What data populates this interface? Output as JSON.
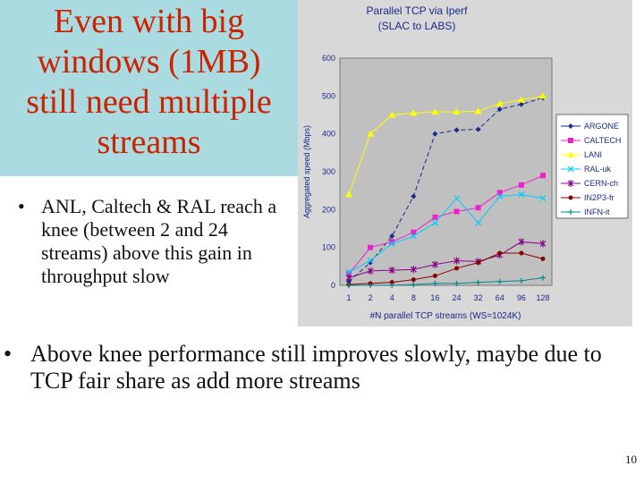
{
  "slide": {
    "title_lines": [
      "Even with big",
      "windows (1MB)",
      "still need multiple",
      "streams"
    ],
    "bullet1": "ANL, Caltech & RAL reach a knee (between 2 and 24 streams) above this gain in throughput slow",
    "bullet2": "Above knee performance still improves slowly, maybe due to TCP fair share as add more streams",
    "bullet_glyph": "•",
    "page_number": "10",
    "colors": {
      "title_bg": "#a9dbe0",
      "title_text": "#cc2200",
      "chart_bg": "#d8d8d8",
      "plot_bg": "#c0c0c0"
    }
  },
  "chart_data": {
    "type": "line",
    "title": "Parallel TCP via Iperf",
    "subtitle": "(SLAC to LABS)",
    "xlabel": "#N parallel TCP streams (WS=1024K)",
    "ylabel": "Aggregated speed (Mbps)",
    "categories": [
      "1",
      "2",
      "4",
      "8",
      "16",
      "24",
      "32",
      "64",
      "96",
      "128"
    ],
    "ylim": [
      0,
      600
    ],
    "yticks": [
      0,
      100,
      200,
      300,
      400,
      500,
      600
    ],
    "grid": false,
    "legend_position": "right",
    "series": [
      {
        "name": "ARGONE",
        "color": "#1a2a8a",
        "marker": "diamond",
        "dash": "5,3",
        "values": [
          10,
          60,
          130,
          235,
          400,
          410,
          412,
          465,
          478,
          495
        ]
      },
      {
        "name": "CALTECH",
        "color": "#ee22cc",
        "marker": "square",
        "dash": "",
        "values": [
          30,
          100,
          115,
          140,
          180,
          195,
          205,
          245,
          265,
          290
        ]
      },
      {
        "name": "LANI",
        "color": "#ffff00",
        "marker": "triangle",
        "dash": "",
        "values": [
          240,
          400,
          450,
          455,
          458,
          458,
          460,
          480,
          490,
          500
        ]
      },
      {
        "name": "RAL-uk",
        "color": "#00ccff",
        "marker": "x",
        "dash": "",
        "values": [
          35,
          65,
          110,
          130,
          165,
          230,
          165,
          235,
          240,
          230
        ]
      },
      {
        "name": "CERN-ch",
        "color": "#880088",
        "marker": "star",
        "dash": "",
        "values": [
          20,
          38,
          40,
          42,
          55,
          65,
          63,
          80,
          115,
          110
        ]
      },
      {
        "name": "IN2P3-fr",
        "color": "#880000",
        "marker": "circle",
        "dash": "",
        "values": [
          2,
          5,
          8,
          15,
          25,
          45,
          60,
          85,
          85,
          70
        ]
      },
      {
        "name": "INFN-it",
        "color": "#008888",
        "marker": "plus",
        "dash": "",
        "values": [
          0,
          0,
          0,
          2,
          5,
          5,
          8,
          10,
          12,
          20
        ]
      }
    ]
  }
}
